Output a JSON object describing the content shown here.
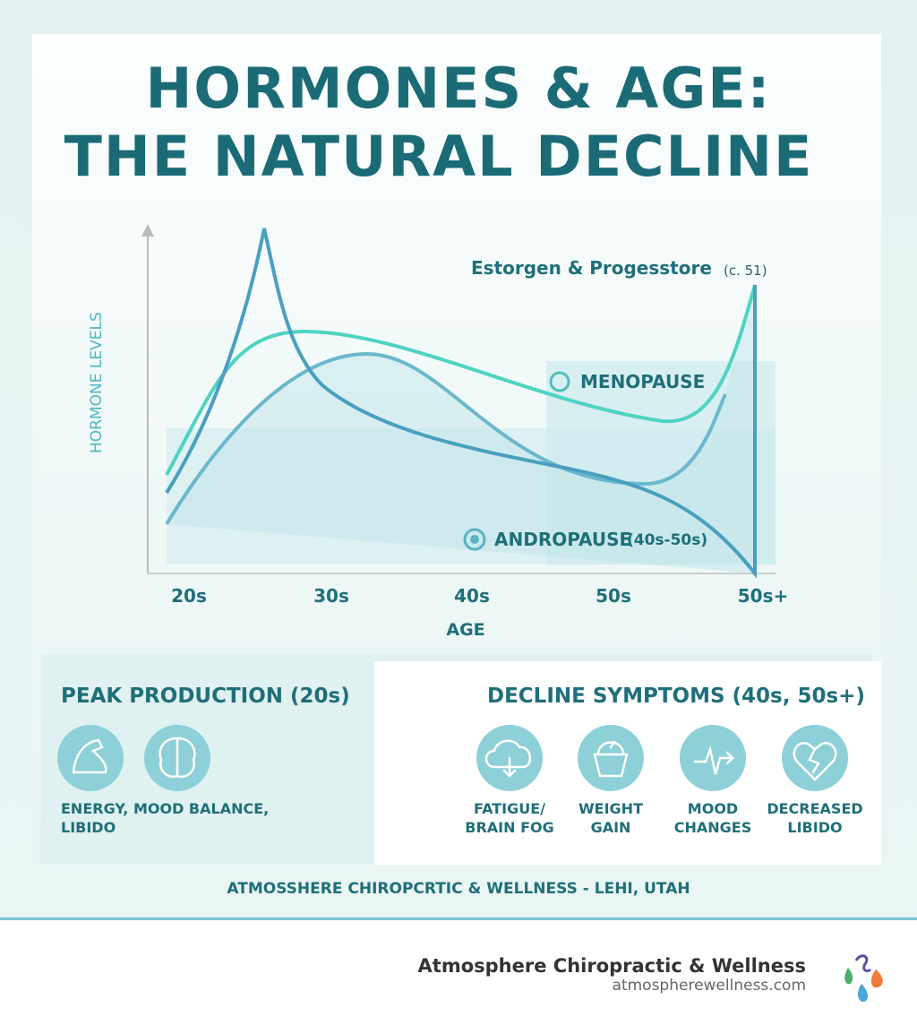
{
  "header": {
    "title_lines": [
      "HORMONES & AGE:",
      "THE NATURAL DECLINE"
    ]
  },
  "chart": {
    "y_label": "HORMONE LEVELS",
    "x_label": "AGE",
    "x_categories": [
      "20s",
      "30s",
      "40s",
      "50s",
      "50s+"
    ],
    "annotations": {
      "estrogen": "Estorgen & Progesstore",
      "estrogen_note": "(c. 51)",
      "menopause": "MENOPAUSE",
      "andropause": "ANDROPAUSE",
      "andropause_note": "(40s-50s)"
    }
  },
  "peak_panel": {
    "title": "PEAK PRODUCTION (20s)",
    "caption_lines": [
      "ENERGY, MOOD BALANCE,",
      "LIBIDO"
    ]
  },
  "decline_panel": {
    "title": "DECLINE SYMPTOMS (40s, 50s+)",
    "items": [
      [
        "FATIGUE/",
        "BRAIN FOG"
      ],
      [
        "WEIGHT",
        "GAIN"
      ],
      [
        "MOOD",
        "CHANGES"
      ],
      [
        "DECREASED",
        "LIBIDO"
      ]
    ]
  },
  "footer": {
    "band": "ATMOSSHERE CHIROPCRTIC & WELLNESS - LEHI, UTAH",
    "brand": "Atmosphere Chiropractic & Wellness",
    "url": "atmospherewellness.com"
  }
}
